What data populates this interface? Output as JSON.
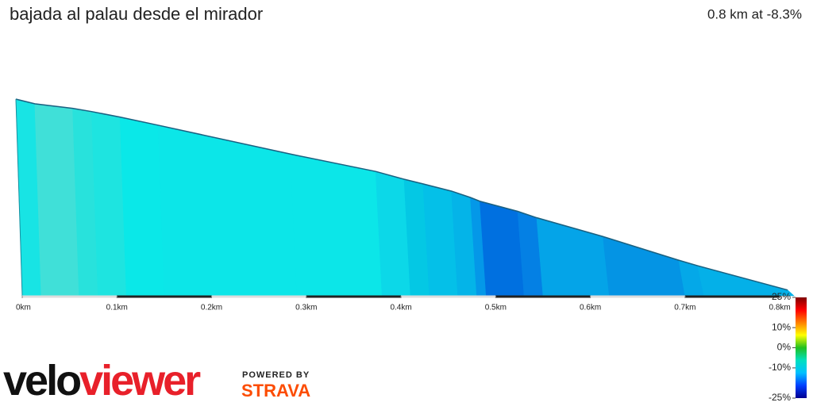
{
  "title": "bajada al palau desde el mirador",
  "summary": "0.8 km at -8.3%",
  "brand": {
    "first": "velo",
    "second": "viewer",
    "powered_by": "POWERED BY",
    "partner": "STRAVA"
  },
  "chart_data": {
    "type": "area",
    "x": [
      0,
      0.02,
      0.06,
      0.08,
      0.11,
      0.15,
      0.29,
      0.38,
      0.41,
      0.43,
      0.46,
      0.48,
      0.49,
      0.53,
      0.55,
      0.62,
      0.7,
      0.72,
      0.815
    ],
    "values": [
      66.0,
      64.4,
      62.8,
      61.7,
      59.8,
      57.0,
      47.0,
      41.0,
      38.3,
      36.7,
      34.2,
      32.0,
      30.7,
      27.2,
      25.0,
      18.5,
      10.3,
      8.4,
      0
    ],
    "segment_colors": [
      "#18e4e4",
      "#40e0d8",
      "#28e2dc",
      "#1ee4e0",
      "#0ae8e8",
      "#0ce6e8",
      "#0ce6e8",
      "#0cd8e8",
      "#04c8e4",
      "#04c0e8",
      "#04b4e8",
      "#0498e8",
      "#0070e0",
      "#0480e4",
      "#04a4e8",
      "#0494e4",
      "#04a8e8",
      "#04b0e8"
    ],
    "xlim": [
      0,
      0.815
    ],
    "xticks": [
      {
        "value": 0,
        "label": "0km"
      },
      {
        "value": 0.1,
        "label": "0.1km"
      },
      {
        "value": 0.2,
        "label": "0.2km"
      },
      {
        "value": 0.3,
        "label": "0.3km"
      },
      {
        "value": 0.4,
        "label": "0.4km"
      },
      {
        "value": 0.5,
        "label": "0.5km"
      },
      {
        "value": 0.6,
        "label": "0.6km"
      },
      {
        "value": 0.7,
        "label": "0.7km"
      },
      {
        "value": 0.8,
        "label": "0.8km"
      }
    ],
    "ylim": [
      -2,
      66
    ],
    "colorbar": {
      "lim": [
        -25,
        25
      ],
      "colors": [
        "#000090",
        "#0040ff",
        "#00c0ff",
        "#00e0c0",
        "#20c020",
        "#ffff00",
        "#ff8000",
        "#ff0000",
        "#800000"
      ],
      "ticks": [
        {
          "value": 25,
          "label": "25%"
        },
        {
          "value": 10,
          "label": "10%"
        },
        {
          "value": 0,
          "label": "0%"
        },
        {
          "value": -10,
          "label": "-10%"
        },
        {
          "value": -25,
          "label": "-25%"
        }
      ]
    }
  }
}
